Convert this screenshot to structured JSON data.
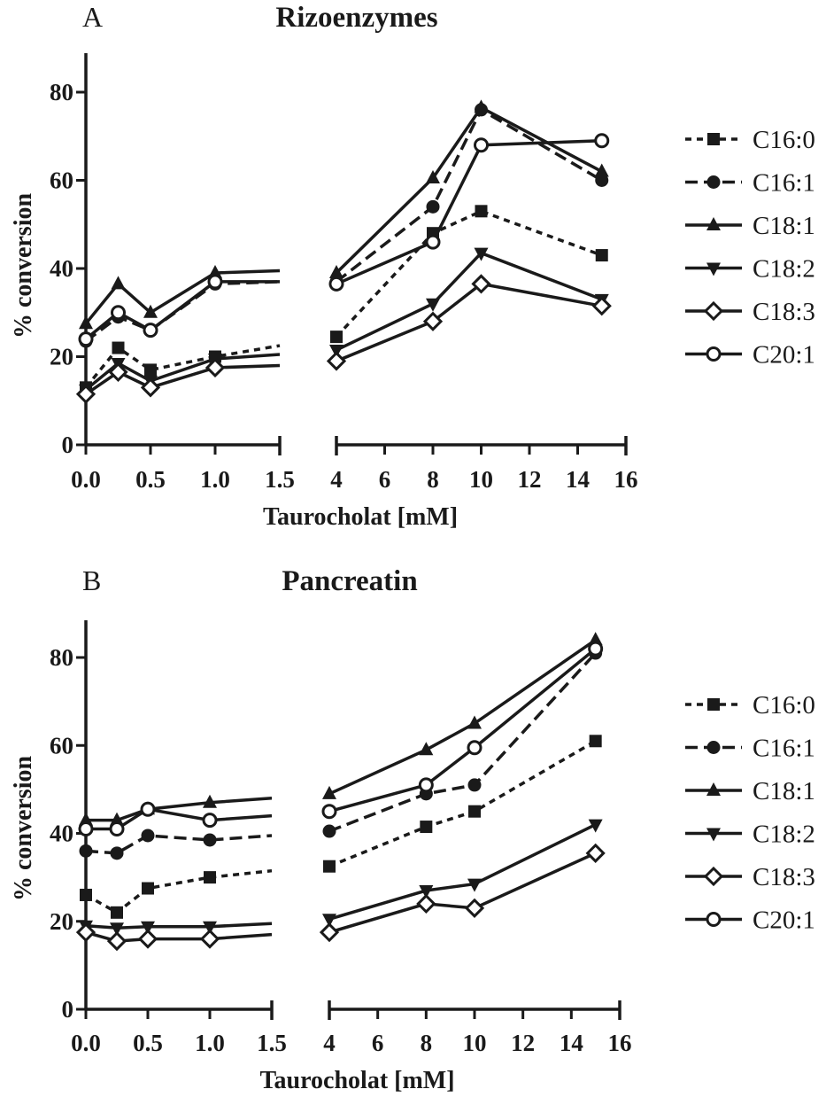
{
  "chart_data": [
    {
      "type": "line",
      "panel_label": "A",
      "title": "Rizoenzymes",
      "xlabel": "Taurocholat [mM]",
      "ylabel": "% conversion",
      "ylim": [
        0,
        85
      ],
      "yticks": [
        0,
        20,
        40,
        60,
        80
      ],
      "x_segments": [
        {
          "range": [
            0,
            1.5
          ],
          "ticks": [
            0.0,
            0.5,
            1.0,
            1.5
          ],
          "tick_labels": [
            "0.0",
            "0.5",
            "1.0",
            "1.5"
          ]
        },
        {
          "range": [
            4,
            16
          ],
          "ticks": [
            4,
            6,
            8,
            10,
            12,
            14,
            16
          ],
          "tick_labels": [
            "4",
            "6",
            "8",
            "10",
            "12",
            "14",
            "16"
          ]
        }
      ],
      "x": [
        0,
        0.25,
        0.5,
        1.0,
        1.5,
        4,
        8,
        10,
        15
      ],
      "legend_position": "right",
      "grid": false,
      "series": [
        {
          "name": "C16:0",
          "marker": "square",
          "line": "dotted",
          "values": [
            13,
            22,
            17,
            20,
            22.5,
            24.5,
            48,
            53,
            43
          ]
        },
        {
          "name": "C16:1",
          "marker": "circle-filled",
          "line": "dashed",
          "values": [
            23.5,
            29,
            26,
            36.5,
            37,
            37,
            54,
            76,
            60
          ]
        },
        {
          "name": "C18:1",
          "marker": "triangle-up",
          "line": "solid",
          "values": [
            27.5,
            36.5,
            30,
            39,
            39.5,
            39,
            60.5,
            76.5,
            62
          ]
        },
        {
          "name": "C18:2",
          "marker": "triangle-down",
          "line": "solid",
          "values": [
            12.5,
            18.5,
            14.5,
            19.5,
            20.5,
            21.5,
            32,
            43.5,
            33
          ]
        },
        {
          "name": "C18:3",
          "marker": "diamond-open",
          "line": "solid",
          "values": [
            11.5,
            16.5,
            13,
            17.5,
            18,
            19,
            28,
            36.5,
            31.5
          ]
        },
        {
          "name": "C20:1",
          "marker": "circle-open",
          "line": "solid",
          "values": [
            24,
            30,
            26,
            37,
            37,
            36.5,
            46,
            68,
            69
          ]
        }
      ]
    },
    {
      "type": "line",
      "panel_label": "B",
      "title": "Pancreatin",
      "xlabel": "Taurocholat [mM]",
      "ylabel": "% conversion",
      "ylim": [
        0,
        85
      ],
      "yticks": [
        0,
        20,
        40,
        60,
        80
      ],
      "x_segments": [
        {
          "range": [
            0,
            1.5
          ],
          "ticks": [
            0.0,
            0.5,
            1.0,
            1.5
          ],
          "tick_labels": [
            "0.0",
            "0.5",
            "1.0",
            "1.5"
          ]
        },
        {
          "range": [
            4,
            16
          ],
          "ticks": [
            4,
            6,
            8,
            10,
            12,
            14,
            16
          ],
          "tick_labels": [
            "4",
            "6",
            "8",
            "10",
            "12",
            "14",
            "16"
          ]
        }
      ],
      "x": [
        0,
        0.25,
        0.5,
        1.0,
        1.5,
        4,
        8,
        10,
        15
      ],
      "legend_position": "right",
      "grid": false,
      "series": [
        {
          "name": "C16:0",
          "marker": "square",
          "line": "dotted",
          "values": [
            26,
            22,
            27.5,
            30,
            31.5,
            32.5,
            41.5,
            45,
            61
          ]
        },
        {
          "name": "C16:1",
          "marker": "circle-filled",
          "line": "dashed",
          "values": [
            36,
            35.5,
            39.5,
            38.5,
            39.5,
            40.5,
            49,
            51,
            81
          ]
        },
        {
          "name": "C18:1",
          "marker": "triangle-up",
          "line": "solid",
          "values": [
            43,
            43,
            45.5,
            47,
            48,
            49,
            59,
            65,
            84
          ]
        },
        {
          "name": "C18:2",
          "marker": "triangle-down",
          "line": "solid",
          "values": [
            19,
            18.5,
            18.8,
            18.8,
            19.5,
            20.5,
            27,
            28.5,
            42
          ]
        },
        {
          "name": "C18:3",
          "marker": "diamond-open",
          "line": "solid",
          "values": [
            17.5,
            15.5,
            16,
            16,
            17,
            17.5,
            24,
            23,
            35.5
          ]
        },
        {
          "name": "C20:1",
          "marker": "circle-open",
          "line": "solid",
          "values": [
            41,
            41,
            45.5,
            43,
            44,
            45,
            51,
            59.5,
            82
          ]
        }
      ]
    }
  ]
}
